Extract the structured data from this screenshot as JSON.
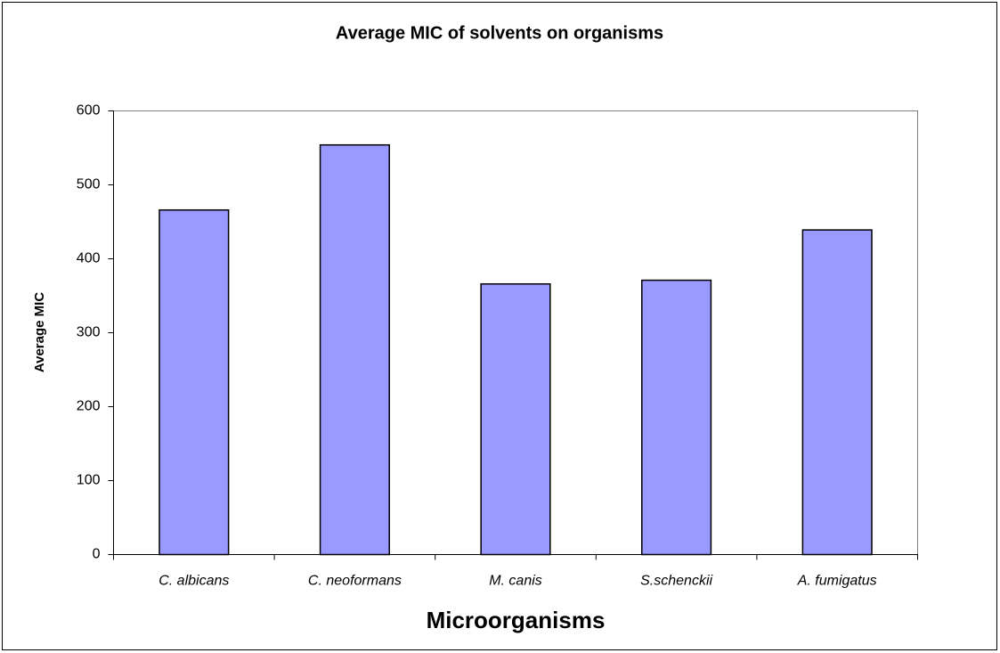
{
  "chart_data": {
    "type": "bar",
    "title": "Average MIC of solvents on organisms",
    "x_label": "Microorganisms",
    "y_label": "Average MIC",
    "categories": [
      "C. albicans",
      "C. neoformans",
      "M. canis",
      "S.schenckii",
      "A. fumigatus"
    ],
    "values": [
      466,
      554,
      366,
      371,
      439
    ],
    "color": "#9999ff",
    "ylim": [
      0,
      600
    ],
    "yticks": [
      0,
      100,
      200,
      300,
      400,
      500,
      600
    ],
    "grid": false
  }
}
